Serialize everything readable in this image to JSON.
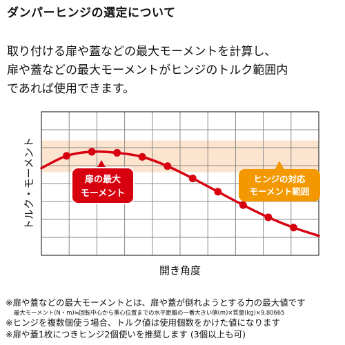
{
  "title": "ダンパーヒンジの選定について",
  "intro_lines": [
    "取り付ける扉や蓋などの最大モーメントを計算し、",
    "扉や蓋などの最大モーメントがヒンジのトルク範囲内",
    "であれば使用できます。"
  ],
  "colors": {
    "curve": "#d7000f",
    "band": "#fce4cf",
    "orange_label": "#f39800",
    "red_label": "#d7000f",
    "grid": "#8a8a8a"
  },
  "chart_data": {
    "type": "line",
    "ylabel": "トルク・モーメント",
    "xlabel": "開き角度",
    "grid": true,
    "x": [
      0,
      1,
      2,
      3,
      4,
      5,
      6,
      7,
      8,
      9
    ],
    "y": [
      4.85,
      5.05,
      5.0,
      4.8,
      4.35,
      3.75,
      3.1,
      2.45,
      1.85,
      1.35
    ],
    "xlim": [
      -1,
      10
    ],
    "ylim": [
      0,
      7
    ],
    "torque_band": [
      4.05,
      5.6
    ],
    "annotations": [
      {
        "text": [
          "扉の最大",
          "モーメント"
        ],
        "kind": "max-moment"
      },
      {
        "text": [
          "ヒンジの対応",
          "モーメント範囲"
        ],
        "kind": "hinge-range"
      }
    ]
  },
  "notes": [
    "※扉や蓋などの最大モーメントとは、扉や蓋が倒れようとする力の最大値です",
    "最大モーメント(N・m)≒回転中心から重心位置までの水平距離の一番大きい値(m)×質量(kg)×9.80665",
    "※ヒンジを複数個使う場合、トルク値は使用個数をかけた値になります",
    "※扉や蓋1枚につきヒンジ2個使いを推奨します (3個以上も可)"
  ]
}
